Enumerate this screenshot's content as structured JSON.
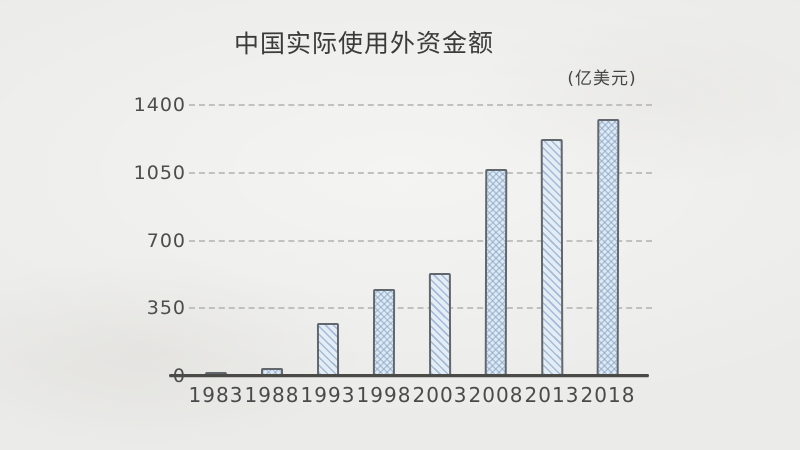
{
  "title": "中国实际使用外资金额",
  "unit_label": "(亿美元)",
  "colors": {
    "background": "#ebebe9",
    "text": "#3b3b3b",
    "tick_text": "#4d4d4d",
    "gridline": "#bcbcba",
    "axis_line": "#4a4a46",
    "bar_fill": "#e1eaf4",
    "bar_hatch": "#80a0c5",
    "bar_border": "#61676d"
  },
  "chart_data": {
    "type": "bar",
    "title": "中国实际使用外资金额",
    "unit": "(亿美元)",
    "categories": [
      "1983",
      "1988",
      "1993",
      "1998",
      "2003",
      "2008",
      "2013",
      "2018"
    ],
    "values": [
      20,
      40,
      275,
      450,
      530,
      1070,
      1225,
      1330
    ],
    "xlabel": "",
    "ylabel": "",
    "ylim": [
      0,
      1400
    ],
    "yticks": [
      0,
      350,
      700,
      1050,
      1400
    ],
    "grid": "horizontal-dashed",
    "legend": "none",
    "style": "hand-drawn, alternating hatch fills",
    "hatch_pattern": [
      "diagonal",
      "cross",
      "diagonal",
      "cross",
      "diagonal",
      "cross",
      "diagonal",
      "cross"
    ]
  }
}
